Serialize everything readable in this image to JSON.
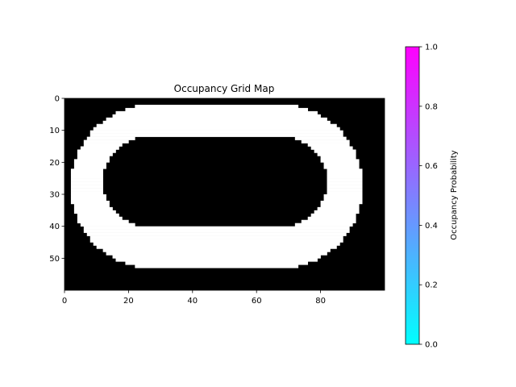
{
  "chart_data": {
    "type": "heatmap",
    "title": "Occupancy Grid Map",
    "xlabel": "",
    "ylabel": "",
    "grid": false,
    "x_ticks": [
      "0",
      "20",
      "40",
      "60",
      "80"
    ],
    "y_ticks": [
      "0",
      "10",
      "20",
      "30",
      "40",
      "50"
    ],
    "x_tick_values": [
      0,
      20,
      40,
      60,
      80
    ],
    "y_tick_values": [
      0,
      10,
      20,
      30,
      40,
      50
    ],
    "xlim": [
      0,
      100
    ],
    "ylim": [
      60,
      0
    ],
    "grid_shape": [
      60,
      100
    ],
    "values_description": "binary occupancy (0 = black, 1 = white track)",
    "track": {
      "outer": {
        "x_min": 2,
        "x_max": 93,
        "y_min": 2,
        "y_max": 53
      },
      "inner": {
        "x_min": 12,
        "x_max": 82,
        "y_min": 12,
        "y_max": 40
      },
      "value": 1,
      "background_value": 0
    },
    "colorbar": {
      "label": "Occupancy Probability",
      "ticks": [
        "0.0",
        "0.2",
        "0.4",
        "0.6",
        "0.8",
        "1.0"
      ],
      "tick_values": [
        0.0,
        0.2,
        0.4,
        0.6,
        0.8,
        1.0
      ],
      "range": [
        0,
        1
      ],
      "colormap": "cool",
      "color_low": "#00ffff",
      "color_high": "#ff00ff"
    },
    "image_colors": {
      "free": "#000000",
      "occupied": "#ffffff"
    }
  }
}
